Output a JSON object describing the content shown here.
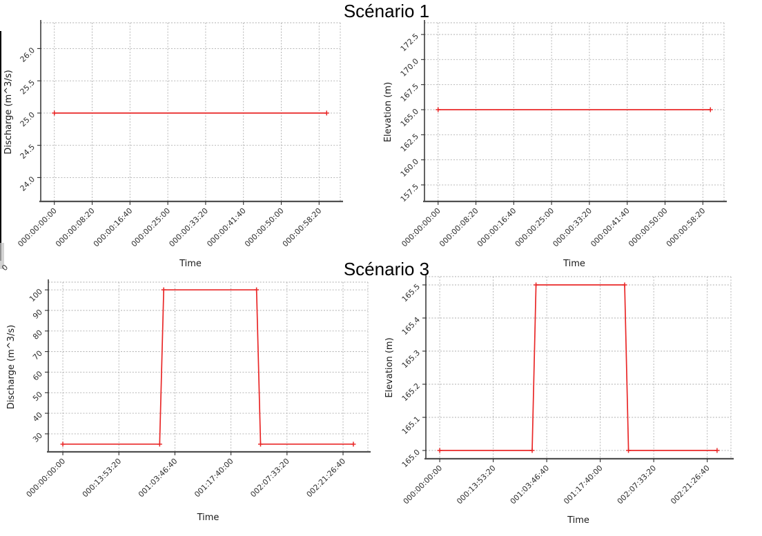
{
  "sections": [
    {
      "title": "Scénario 1"
    },
    {
      "title": "Scénario 3"
    }
  ],
  "colors": {
    "line_red": "#e92727",
    "grid": "#adadad",
    "spine_left": "#202020",
    "spine_bottom": "#4f4f4f",
    "tick_mark": "#2b2b2b",
    "tick_text": "#2e2e2e",
    "axis_label_text": "#1a1a1a"
  },
  "artifacts": {
    "stray_tick_label": "0"
  },
  "chart_data": [
    {
      "id": "scenario1-discharge",
      "section": "Scénario 1",
      "type": "line",
      "xlabel": "Time",
      "ylabel": "Discharge (m^3/s)",
      "grid": true,
      "x_tick_labels": [
        "000:00:00:00",
        "000:00:08:20",
        "000:00:16:40",
        "000:00:25:00",
        "000:00:33:20",
        "000:00:41:40",
        "000:00:50:00",
        "000:00:58:20"
      ],
      "x_tick_seconds": [
        0,
        500,
        1000,
        1500,
        2000,
        2500,
        3000,
        3500
      ],
      "y_tick_labels": [
        "24.0",
        "24.5",
        "25.0",
        "25.5",
        "26.0"
      ],
      "y_tick_values": [
        24.0,
        24.5,
        25.0,
        25.5,
        26.0
      ],
      "xlim": [
        -180,
        3780
      ],
      "ylim": [
        23.63,
        26.4
      ],
      "points": [
        [
          0,
          25.0
        ],
        [
          3600,
          25.0
        ]
      ]
    },
    {
      "id": "scenario1-elevation",
      "section": "Scénario 1",
      "type": "line",
      "xlabel": "Time",
      "ylabel": "Elevation (m)",
      "grid": true,
      "x_tick_labels": [
        "000:00:00:00",
        "000:00:08:20",
        "000:00:16:40",
        "000:00:25:00",
        "000:00:33:20",
        "000:00:41:40",
        "000:00:50:00",
        "000:00:58:20"
      ],
      "x_tick_seconds": [
        0,
        500,
        1000,
        1500,
        2000,
        2500,
        3000,
        3500
      ],
      "y_tick_labels": [
        "157.5",
        "160.0",
        "162.5",
        "165.0",
        "167.5",
        "170.0",
        "172.5"
      ],
      "y_tick_values": [
        157.5,
        160.0,
        162.5,
        165.0,
        167.5,
        170.0,
        172.5
      ],
      "xlim": [
        -180,
        3780
      ],
      "ylim": [
        155.85,
        173.67
      ],
      "points": [
        [
          0,
          165.0
        ],
        [
          3600,
          165.0
        ]
      ]
    },
    {
      "id": "scenario3-discharge",
      "section": "Scénario 3",
      "type": "line",
      "xlabel": "Time",
      "ylabel": "Discharge (m^3/s)",
      "grid": true,
      "x_tick_labels": [
        "000:00:00:00",
        "000:13:53:20",
        "001:03:46:40",
        "001:17:40:00",
        "002:07:33:20",
        "002:21:26:40"
      ],
      "x_tick_seconds": [
        0,
        50000,
        100000,
        150000,
        200000,
        250000
      ],
      "y_tick_labels": [
        "30",
        "40",
        "50",
        "60",
        "70",
        "80",
        "90",
        "100"
      ],
      "y_tick_values": [
        30,
        40,
        50,
        60,
        70,
        80,
        90,
        100
      ],
      "xlim": [
        -12960,
        272160
      ],
      "ylim": [
        21.25,
        103.75
      ],
      "points": [
        [
          0,
          25
        ],
        [
          86400,
          25
        ],
        [
          90000,
          100
        ],
        [
          172800,
          100
        ],
        [
          176400,
          25
        ],
        [
          259200,
          25
        ]
      ]
    },
    {
      "id": "scenario3-elevation",
      "section": "Scénario 3",
      "type": "line",
      "xlabel": "Time",
      "ylabel": "Elevation (m)",
      "grid": true,
      "x_tick_labels": [
        "000:00:00:00",
        "000:13:53:20",
        "001:03:46:40",
        "001:17:40:00",
        "002:07:33:20",
        "002:21:26:40"
      ],
      "x_tick_seconds": [
        0,
        50000,
        100000,
        150000,
        200000,
        250000
      ],
      "y_tick_labels": [
        "165.0",
        "165.1",
        "165.2",
        "165.3",
        "165.4",
        "165.5"
      ],
      "y_tick_values": [
        165.0,
        165.1,
        165.2,
        165.3,
        165.4,
        165.5
      ],
      "xlim": [
        -12960,
        272160
      ],
      "ylim": [
        164.975,
        165.525
      ],
      "points": [
        [
          0,
          165.0
        ],
        [
          86400,
          165.0
        ],
        [
          90000,
          165.5
        ],
        [
          172800,
          165.5
        ],
        [
          176400,
          165.0
        ],
        [
          259200,
          165.0
        ]
      ]
    }
  ]
}
